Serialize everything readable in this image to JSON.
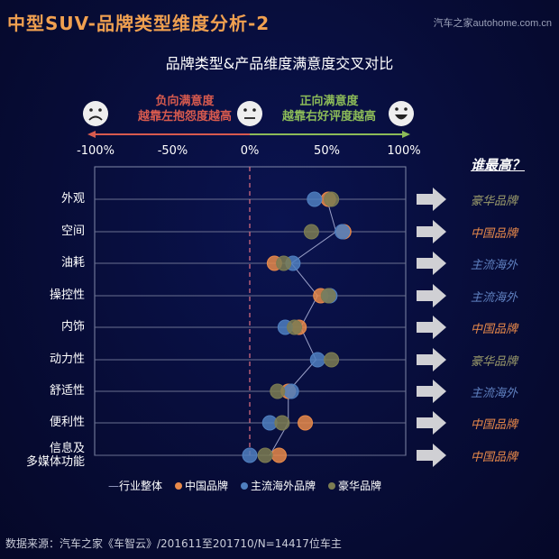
{
  "header": {
    "title": "中型SUV-品牌类型维度分析-2",
    "brand": "汽车之家autohome.com.cn",
    "subtitle": "品牌类型&产品维度满意度交叉对比"
  },
  "hints": {
    "negative": [
      "负向满意度",
      "越靠左抱怨度越高"
    ],
    "positive": [
      "正向满意度",
      "越靠右好评度越高"
    ],
    "icons": [
      "sad-face-icon",
      "neutral-face-icon",
      "happy-face-icon"
    ]
  },
  "colors": {
    "china": "#e8894a",
    "foreign": "#4f7fc0",
    "luxury": "#7c7c52",
    "industry": "#9aa0c8",
    "negative": "#d85a4e",
    "positive": "#8cbb58"
  },
  "chart_data": {
    "type": "scatter",
    "xlim": [
      -100,
      100
    ],
    "xticks": [
      "-100%",
      "-50%",
      "0%",
      "50%",
      "100%"
    ],
    "reference_line": 0,
    "categories": [
      "外观",
      "空间",
      "油耗",
      "操控性",
      "内饰",
      "动力性",
      "舒适性",
      "便利性",
      "信息及\n多媒体功能"
    ],
    "series": [
      {
        "name": "行业整体",
        "kind": "line",
        "values": [
          50,
          56,
          27,
          44,
          33,
          43,
          25,
          25,
          13
        ]
      },
      {
        "name": "中国品牌",
        "key": "china",
        "values": [
          51,
          61,
          16,
          46,
          32,
          null,
          25,
          36,
          19
        ]
      },
      {
        "name": "主流海外品牌",
        "key": "foreign",
        "values": [
          42,
          60,
          28,
          52,
          23,
          44,
          27,
          13,
          0
        ]
      },
      {
        "name": "豪华品牌",
        "key": "luxury",
        "values": [
          53,
          40,
          22,
          51,
          29,
          53,
          18,
          21,
          10
        ]
      }
    ]
  },
  "winner": {
    "title": "谁最高？",
    "answers": [
      {
        "text": "豪华品牌",
        "key": "luxury"
      },
      {
        "text": "中国品牌",
        "key": "china"
      },
      {
        "text": "主流海外",
        "key": "foreign"
      },
      {
        "text": "主流海外",
        "key": "foreign"
      },
      {
        "text": "中国品牌",
        "key": "china"
      },
      {
        "text": "豪华品牌",
        "key": "luxury"
      },
      {
        "text": "主流海外",
        "key": "foreign"
      },
      {
        "text": "中国品牌",
        "key": "china"
      },
      {
        "text": "中国品牌",
        "key": "china"
      }
    ]
  },
  "legend": [
    "行业整体",
    "中国品牌",
    "主流海外品牌",
    "豪华品牌"
  ],
  "footer": {
    "source": "数据来源：汽车之家《车智云》/201611至201710/N=14417位车主"
  }
}
